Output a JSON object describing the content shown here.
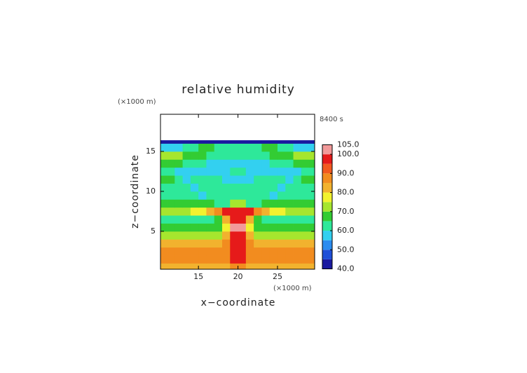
{
  "chart_data": {
    "type": "heatmap",
    "title": "relative humidity",
    "time_label": "8400 s",
    "x_label": "x−coordinate",
    "y_label": "z−coordinate",
    "x_unit": "(×1000 m)",
    "y_unit": "(×1000 m)",
    "xlim": [
      10.2,
      29.7
    ],
    "ylim": [
      0.25,
      19.65
    ],
    "xticks": [
      15,
      20,
      25
    ],
    "yticks": [
      5,
      10,
      15
    ],
    "x_edges": [
      10,
      11,
      12,
      13,
      14,
      15,
      16,
      17,
      18,
      19,
      20,
      21,
      22,
      23,
      24,
      25,
      26,
      27,
      28,
      29,
      30
    ],
    "y_edges": [
      0,
      1,
      2,
      3,
      4,
      5,
      6,
      7,
      8,
      9,
      10,
      11,
      12,
      13,
      14,
      15,
      16,
      16.4
    ],
    "z": [
      [
        80,
        80,
        80,
        80,
        80,
        80,
        80,
        80,
        81,
        85,
        85,
        81,
        80,
        80,
        80,
        80,
        80,
        80,
        80,
        80
      ],
      [
        88,
        88,
        88,
        88,
        88,
        88,
        88,
        88,
        89,
        97,
        97,
        89,
        88,
        88,
        88,
        88,
        88,
        88,
        88,
        88
      ],
      [
        87,
        87,
        87,
        87,
        87,
        87,
        87,
        87,
        89,
        98,
        98,
        89,
        87,
        87,
        87,
        87,
        87,
        87,
        87,
        87
      ],
      [
        82,
        82,
        82,
        82,
        82,
        82,
        82,
        82,
        86,
        97,
        97,
        86,
        82,
        82,
        82,
        82,
        82,
        82,
        82,
        82
      ],
      [
        72,
        72,
        72,
        72,
        72,
        72,
        72,
        73,
        80,
        97,
        97,
        80,
        73,
        72,
        72,
        72,
        72,
        72,
        72,
        72
      ],
      [
        66,
        66,
        66,
        66,
        66,
        66,
        66,
        67,
        78,
        101,
        101,
        78,
        67,
        66,
        66,
        66,
        66,
        66,
        66,
        66
      ],
      [
        62,
        62,
        62,
        62,
        62,
        62,
        63,
        68,
        82,
        97,
        97,
        82,
        68,
        63,
        62,
        62,
        62,
        62,
        62,
        62
      ],
      [
        74,
        74,
        74,
        74,
        75,
        76,
        80,
        88,
        95,
        98,
        98,
        95,
        88,
        80,
        76,
        75,
        74,
        74,
        74,
        74
      ],
      [
        65,
        65,
        65,
        65,
        65,
        66,
        66,
        64,
        62,
        72,
        72,
        62,
        64,
        66,
        66,
        65,
        65,
        65,
        65,
        65
      ],
      [
        63,
        63,
        63,
        62,
        60,
        58,
        60,
        63,
        64,
        63,
        63,
        64,
        63,
        60,
        58,
        60,
        62,
        63,
        63,
        63
      ],
      [
        64,
        64,
        63,
        60,
        58,
        60,
        63,
        64,
        62,
        60,
        60,
        62,
        64,
        63,
        60,
        58,
        60,
        63,
        64,
        64
      ],
      [
        66,
        66,
        62,
        58,
        60,
        63,
        63,
        60,
        58,
        57,
        57,
        58,
        60,
        63,
        63,
        60,
        58,
        62,
        66,
        66
      ],
      [
        63,
        62,
        58,
        57,
        58,
        58,
        57,
        56,
        57,
        60,
        60,
        57,
        56,
        57,
        58,
        58,
        57,
        58,
        62,
        63
      ],
      [
        66,
        66,
        65,
        63,
        62,
        60,
        58,
        57,
        56,
        56,
        56,
        56,
        57,
        58,
        60,
        62,
        63,
        65,
        66,
        66
      ],
      [
        70,
        70,
        70,
        68,
        66,
        65,
        63,
        62,
        62,
        63,
        63,
        62,
        62,
        63,
        65,
        66,
        68,
        70,
        70,
        70
      ],
      [
        55,
        55,
        56,
        60,
        64,
        66,
        66,
        64,
        62,
        62,
        62,
        62,
        64,
        66,
        66,
        64,
        60,
        56,
        55,
        55
      ],
      [
        44,
        44,
        44,
        44,
        43,
        43,
        42,
        42,
        42,
        42,
        42,
        42,
        42,
        42,
        43,
        43,
        44,
        44,
        44,
        44
      ]
    ],
    "levels": [
      40,
      45,
      50,
      55,
      60,
      65,
      70,
      75,
      80,
      85,
      90,
      95,
      100,
      105
    ],
    "colors": [
      "#1a1aa0",
      "#1f4fd8",
      "#2b8cf0",
      "#33d0f0",
      "#2ee89a",
      "#33cc33",
      "#a6e62e",
      "#f2f22e",
      "#f2b22e",
      "#f28c1f",
      "#f2591f",
      "#e61a1a",
      "#f29a9a"
    ],
    "colorbar_ticks": [
      {
        "value": 105,
        "label": "105.0"
      },
      {
        "value": 100,
        "label": "100.0"
      },
      {
        "value": 90,
        "label": "90.0"
      },
      {
        "value": 80,
        "label": "80.0"
      },
      {
        "value": 70,
        "label": "70.0"
      },
      {
        "value": 60,
        "label": "60.0"
      },
      {
        "value": 50,
        "label": "50.0"
      },
      {
        "value": 40,
        "label": "40.0"
      }
    ]
  }
}
